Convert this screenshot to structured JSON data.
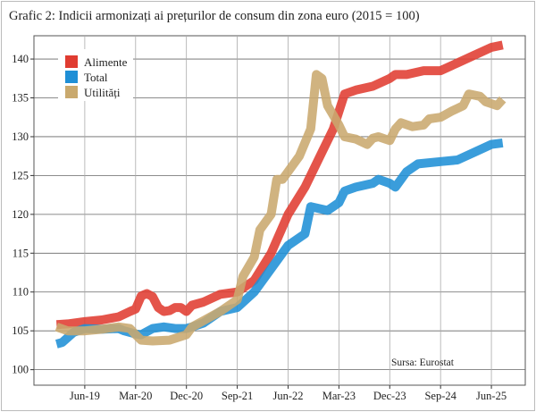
{
  "chart_data": {
    "type": "line",
    "title": "Grafic 2: Indicii armonizați ai prețurilor de consum din zona euro (2015 = 100)",
    "xlabel": "",
    "ylabel": "",
    "xlim": [
      "2018-09",
      "2025-12"
    ],
    "ylim": [
      98,
      143
    ],
    "grid": true,
    "legend": "top-left",
    "source_note": "Sursa: Eurostat",
    "x_ticks": [
      {
        "date": "2019-06",
        "label": "Jun-19"
      },
      {
        "date": "2020-03",
        "label": "Mar-20"
      },
      {
        "date": "2020-12",
        "label": "Dec-20"
      },
      {
        "date": "2021-09",
        "label": "Sep-21"
      },
      {
        "date": "2022-06",
        "label": "Jun-22"
      },
      {
        "date": "2023-03",
        "label": "Mar-23"
      },
      {
        "date": "2023-12",
        "label": "Dec-23"
      },
      {
        "date": "2024-09",
        "label": "Sep-24"
      },
      {
        "date": "2025-06",
        "label": "Jun-25"
      }
    ],
    "y_ticks": [
      100,
      105,
      110,
      115,
      120,
      125,
      130,
      135,
      140
    ],
    "series": [
      {
        "name": "Alimente",
        "color": "#e03c31",
        "points": [
          [
            "2019-01",
            105.8
          ],
          [
            "2019-03",
            105.9
          ],
          [
            "2019-06",
            106.2
          ],
          [
            "2019-09",
            106.4
          ],
          [
            "2019-12",
            106.8
          ],
          [
            "2020-02",
            107.5
          ],
          [
            "2020-03",
            107.8
          ],
          [
            "2020-04",
            109.5
          ],
          [
            "2020-05",
            109.8
          ],
          [
            "2020-06",
            109.4
          ],
          [
            "2020-07",
            108.0
          ],
          [
            "2020-08",
            107.5
          ],
          [
            "2020-09",
            107.6
          ],
          [
            "2020-10",
            108.0
          ],
          [
            "2020-11",
            108.0
          ],
          [
            "2020-12",
            107.5
          ],
          [
            "2021-01",
            108.3
          ],
          [
            "2021-03",
            108.7
          ],
          [
            "2021-06",
            109.7
          ],
          [
            "2021-09",
            110.0
          ],
          [
            "2021-12",
            111.5
          ],
          [
            "2022-03",
            115.0
          ],
          [
            "2022-06",
            120.0
          ],
          [
            "2022-09",
            123.5
          ],
          [
            "2022-12",
            128.0
          ],
          [
            "2023-02",
            131.0
          ],
          [
            "2023-04",
            135.5
          ],
          [
            "2023-06",
            136.0
          ],
          [
            "2023-09",
            136.5
          ],
          [
            "2023-12",
            137.5
          ],
          [
            "2024-01",
            138.0
          ],
          [
            "2024-03",
            138.0
          ],
          [
            "2024-06",
            138.5
          ],
          [
            "2024-09",
            138.5
          ],
          [
            "2024-12",
            139.5
          ],
          [
            "2025-03",
            140.5
          ],
          [
            "2025-06",
            141.5
          ],
          [
            "2025-08",
            141.8
          ]
        ]
      },
      {
        "name": "Total",
        "color": "#1f8fd6",
        "points": [
          [
            "2019-01",
            103.3
          ],
          [
            "2019-02",
            103.5
          ],
          [
            "2019-04",
            104.8
          ],
          [
            "2019-06",
            105.3
          ],
          [
            "2019-09",
            105.2
          ],
          [
            "2019-12",
            105.3
          ],
          [
            "2020-01",
            105.0
          ],
          [
            "2020-03",
            104.6
          ],
          [
            "2020-04",
            104.5
          ],
          [
            "2020-06",
            105.3
          ],
          [
            "2020-08",
            105.5
          ],
          [
            "2020-10",
            105.3
          ],
          [
            "2020-12",
            105.3
          ],
          [
            "2021-01",
            105.5
          ],
          [
            "2021-03",
            106.0
          ],
          [
            "2021-06",
            107.5
          ],
          [
            "2021-09",
            108.0
          ],
          [
            "2021-12",
            110.0
          ],
          [
            "2022-03",
            113.0
          ],
          [
            "2022-06",
            116.0
          ],
          [
            "2022-09",
            117.5
          ],
          [
            "2022-10",
            121.0
          ],
          [
            "2023-01",
            120.5
          ],
          [
            "2023-03",
            121.5
          ],
          [
            "2023-04",
            123.0
          ],
          [
            "2023-06",
            123.5
          ],
          [
            "2023-09",
            124.0
          ],
          [
            "2023-10",
            124.5
          ],
          [
            "2023-12",
            124.0
          ],
          [
            "2024-01",
            123.5
          ],
          [
            "2024-03",
            125.5
          ],
          [
            "2024-05",
            126.5
          ],
          [
            "2024-09",
            126.8
          ],
          [
            "2024-12",
            127.0
          ],
          [
            "2025-03",
            128.0
          ],
          [
            "2025-06",
            129.0
          ],
          [
            "2025-08",
            129.2
          ]
        ]
      },
      {
        "name": "Utilități",
        "color": "#c9a96e",
        "points": [
          [
            "2019-01",
            105.5
          ],
          [
            "2019-03",
            105.0
          ],
          [
            "2019-06",
            105.0
          ],
          [
            "2019-09",
            105.2
          ],
          [
            "2019-12",
            105.5
          ],
          [
            "2020-02",
            105.3
          ],
          [
            "2020-03",
            104.5
          ],
          [
            "2020-04",
            103.8
          ],
          [
            "2020-06",
            103.7
          ],
          [
            "2020-09",
            103.8
          ],
          [
            "2020-12",
            104.5
          ],
          [
            "2021-01",
            105.5
          ],
          [
            "2021-03",
            106.3
          ],
          [
            "2021-06",
            107.5
          ],
          [
            "2021-09",
            109.0
          ],
          [
            "2021-10",
            112.0
          ],
          [
            "2021-12",
            114.5
          ],
          [
            "2022-01",
            118.0
          ],
          [
            "2022-03",
            120.0
          ],
          [
            "2022-04",
            124.5
          ],
          [
            "2022-05",
            124.5
          ],
          [
            "2022-06",
            125.5
          ],
          [
            "2022-08",
            127.5
          ],
          [
            "2022-10",
            131.0
          ],
          [
            "2022-11",
            138.0
          ],
          [
            "2022-12",
            137.5
          ],
          [
            "2023-01",
            134.0
          ],
          [
            "2023-03",
            131.5
          ],
          [
            "2023-04",
            130.0
          ],
          [
            "2023-06",
            129.7
          ],
          [
            "2023-08",
            129.0
          ],
          [
            "2023-09",
            129.8
          ],
          [
            "2023-10",
            130.0
          ],
          [
            "2023-12",
            129.5
          ],
          [
            "2024-01",
            131.0
          ],
          [
            "2024-02",
            131.8
          ],
          [
            "2024-04",
            131.3
          ],
          [
            "2024-06",
            131.5
          ],
          [
            "2024-07",
            132.3
          ],
          [
            "2024-09",
            132.5
          ],
          [
            "2024-11",
            133.3
          ],
          [
            "2025-01",
            134.0
          ],
          [
            "2025-02",
            135.5
          ],
          [
            "2025-04",
            135.2
          ],
          [
            "2025-05",
            134.5
          ],
          [
            "2025-07",
            134.0
          ],
          [
            "2025-08",
            134.8
          ]
        ]
      }
    ]
  }
}
